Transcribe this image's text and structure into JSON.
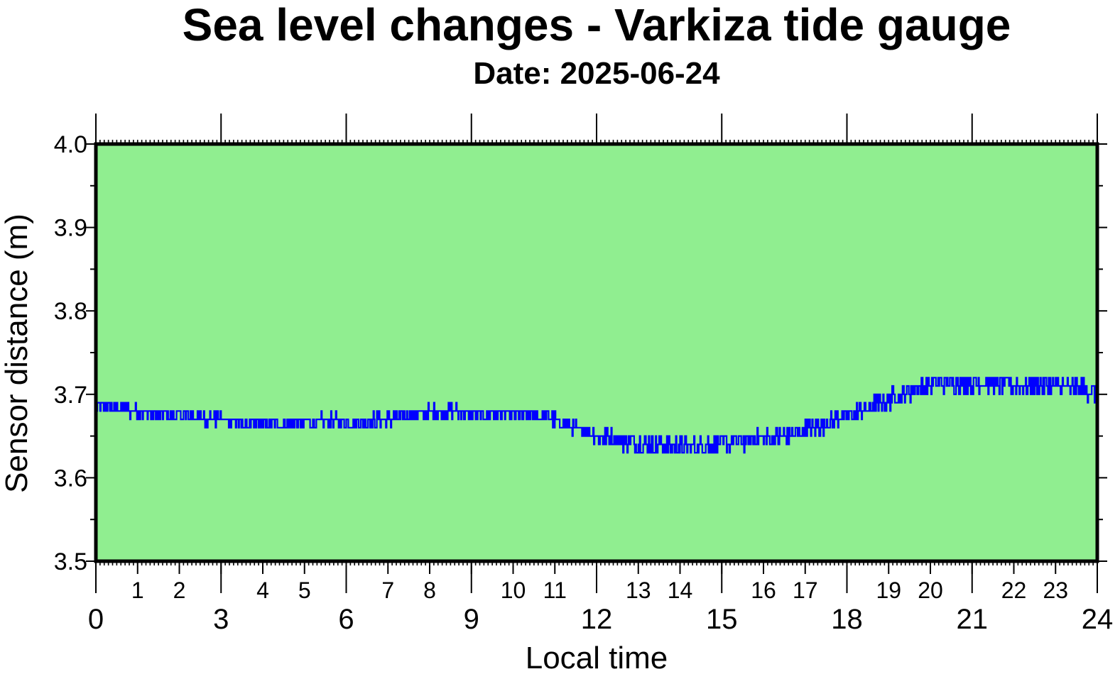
{
  "chart_data": {
    "type": "line",
    "title": "Sea level changes - Varkiza tide gauge",
    "subtitle": "Date: 2025-06-24",
    "xlabel": "Local time",
    "ylabel": "Sensor distance (m)",
    "xlim": [
      0,
      24
    ],
    "ylim": [
      3.5,
      4.0
    ],
    "x_major_ticks": [
      "0",
      "3",
      "6",
      "9",
      "12",
      "15",
      "18",
      "21",
      "24"
    ],
    "x_minor_ticks": [
      "1",
      "2",
      "4",
      "5",
      "7",
      "8",
      "10",
      "11",
      "13",
      "14",
      "16",
      "17",
      "19",
      "20",
      "22",
      "23"
    ],
    "y_ticks": [
      "3.5",
      "3.6",
      "3.7",
      "3.8",
      "3.9",
      "4.0"
    ],
    "grid": false,
    "legend": "none",
    "colors": {
      "background": "#90ee90",
      "line": "#0000ff",
      "frame": "#000000"
    },
    "series": [
      {
        "x": [
          0.0,
          0.25,
          0.5,
          0.75,
          1.0,
          1.25,
          1.5,
          1.75,
          2.0,
          2.25,
          2.5,
          2.75,
          3.0,
          3.25,
          3.5,
          3.75,
          4.0,
          4.25,
          4.5,
          4.75,
          5.0,
          5.25,
          5.5,
          5.75,
          6.0,
          6.25,
          6.5,
          6.75,
          7.0,
          7.25,
          7.5,
          7.75,
          8.0,
          8.25,
          8.5,
          8.75,
          9.0,
          9.25,
          9.5,
          9.75,
          10.0,
          10.25,
          10.5,
          10.75,
          11.0,
          11.25,
          11.5,
          11.75,
          12.0,
          12.25,
          12.5,
          12.75,
          13.0,
          13.25,
          13.5,
          13.75,
          14.0,
          14.25,
          14.5,
          14.75,
          15.0,
          15.25,
          15.5,
          15.75,
          16.0,
          16.25,
          16.5,
          16.75,
          17.0,
          17.25,
          17.5,
          17.75,
          18.0,
          18.25,
          18.5,
          18.75,
          19.0,
          19.25,
          19.5,
          19.75,
          20.0,
          20.25,
          20.5,
          20.75,
          21.0,
          21.25,
          21.5,
          21.75,
          22.0,
          22.25,
          22.5,
          22.75,
          23.0,
          23.25,
          23.5,
          23.75,
          24.0
        ],
        "y": [
          3.685,
          3.686,
          3.684,
          3.682,
          3.68,
          3.678,
          3.676,
          3.675,
          3.674,
          3.673,
          3.672,
          3.671,
          3.67,
          3.668,
          3.666,
          3.664,
          3.663,
          3.663,
          3.664,
          3.665,
          3.666,
          3.667,
          3.668,
          3.668,
          3.668,
          3.668,
          3.668,
          3.669,
          3.67,
          3.672,
          3.675,
          3.677,
          3.678,
          3.679,
          3.679,
          3.679,
          3.678,
          3.677,
          3.677,
          3.677,
          3.677,
          3.676,
          3.675,
          3.672,
          3.669,
          3.664,
          3.659,
          3.655,
          3.651,
          3.648,
          3.645,
          3.643,
          3.641,
          3.64,
          3.639,
          3.638,
          3.638,
          3.638,
          3.639,
          3.64,
          3.641,
          3.643,
          3.644,
          3.645,
          3.646,
          3.648,
          3.65,
          3.653,
          3.657,
          3.661,
          3.666,
          3.671,
          3.675,
          3.679,
          3.684,
          3.689,
          3.694,
          3.699,
          3.704,
          3.708,
          3.711,
          3.713,
          3.714,
          3.715,
          3.715,
          3.714,
          3.713,
          3.712,
          3.711,
          3.711,
          3.711,
          3.711,
          3.71,
          3.709,
          3.708,
          3.706,
          3.7
        ]
      }
    ]
  }
}
